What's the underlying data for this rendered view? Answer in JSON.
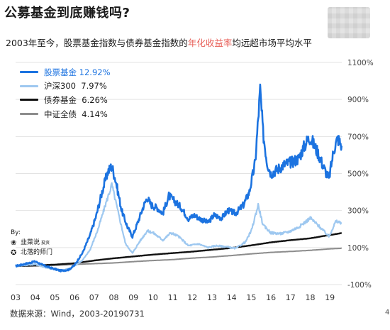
{
  "header": {
    "title": "公募基金到底赚钱吗?",
    "subtitle_pre": "2003年至今，股票基金指数与债券基金指数的",
    "subtitle_highlight": "年化收益率",
    "subtitle_post": "均远超市场平均水平"
  },
  "byline": {
    "label": "By:",
    "author1": "韭菜说",
    "author1_small": "投资",
    "author2": "北落的师门"
  },
  "source": "数据来源：Wind，2003-20190731",
  "page_number": "4",
  "colors": {
    "stock_fund": "#1c73e0",
    "hs300": "#9ec8f0",
    "bond_fund": "#111111",
    "zhongzheng_bond": "#8c8c8c",
    "highlight": "#e8615a"
  },
  "chart_data": {
    "type": "line",
    "x_ticks": [
      "03",
      "04",
      "05",
      "06",
      "07",
      "08",
      "09",
      "10",
      "11",
      "12",
      "13",
      "14",
      "15",
      "16",
      "17",
      "18",
      "19"
    ],
    "y_ticks": [
      "1100%",
      "900%",
      "700%",
      "500%",
      "300%",
      "100%",
      "-100%"
    ],
    "ylim": [
      -100,
      1100
    ],
    "legend_position": "top-left",
    "series": [
      {
        "name": "股票基金 12.92%",
        "color": "#1c73e0",
        "points": [
          [
            2003.0,
            0
          ],
          [
            2003.5,
            12
          ],
          [
            2004.0,
            25
          ],
          [
            2004.4,
            5
          ],
          [
            2004.8,
            -10
          ],
          [
            2005.3,
            -25
          ],
          [
            2005.7,
            -20
          ],
          [
            2006.0,
            5
          ],
          [
            2006.4,
            70
          ],
          [
            2006.8,
            170
          ],
          [
            2007.1,
            270
          ],
          [
            2007.4,
            400
          ],
          [
            2007.7,
            510
          ],
          [
            2007.9,
            540
          ],
          [
            2008.1,
            460
          ],
          [
            2008.4,
            300
          ],
          [
            2008.7,
            210
          ],
          [
            2008.95,
            160
          ],
          [
            2009.2,
            230
          ],
          [
            2009.5,
            320
          ],
          [
            2009.7,
            370
          ],
          [
            2009.9,
            330
          ],
          [
            2010.2,
            315
          ],
          [
            2010.5,
            285
          ],
          [
            2010.8,
            380
          ],
          [
            2011.0,
            360
          ],
          [
            2011.4,
            320
          ],
          [
            2011.8,
            255
          ],
          [
            2012.1,
            275
          ],
          [
            2012.4,
            255
          ],
          [
            2012.8,
            235
          ],
          [
            2013.1,
            275
          ],
          [
            2013.5,
            260
          ],
          [
            2013.8,
            300
          ],
          [
            2014.2,
            285
          ],
          [
            2014.6,
            330
          ],
          [
            2014.9,
            400
          ],
          [
            2015.2,
            560
          ],
          [
            2015.45,
            950
          ],
          [
            2015.6,
            720
          ],
          [
            2015.8,
            560
          ],
          [
            2016.0,
            500
          ],
          [
            2016.3,
            520
          ],
          [
            2016.7,
            550
          ],
          [
            2017.0,
            560
          ],
          [
            2017.4,
            580
          ],
          [
            2017.8,
            670
          ],
          [
            2018.0,
            695
          ],
          [
            2018.4,
            610
          ],
          [
            2018.7,
            530
          ],
          [
            2018.95,
            470
          ],
          [
            2019.2,
            630
          ],
          [
            2019.4,
            690
          ],
          [
            2019.6,
            650
          ]
        ]
      },
      {
        "name": "沪深300  7.97%",
        "color": "#9ec8f0",
        "points": [
          [
            2003.0,
            0
          ],
          [
            2004.0,
            10
          ],
          [
            2004.6,
            -10
          ],
          [
            2005.3,
            -25
          ],
          [
            2005.8,
            -12
          ],
          [
            2006.4,
            30
          ],
          [
            2006.8,
            90
          ],
          [
            2007.2,
            200
          ],
          [
            2007.6,
            340
          ],
          [
            2007.9,
            440
          ],
          [
            2008.2,
            300
          ],
          [
            2008.6,
            120
          ],
          [
            2008.95,
            70
          ],
          [
            2009.3,
            130
          ],
          [
            2009.7,
            190
          ],
          [
            2010.0,
            180
          ],
          [
            2010.5,
            140
          ],
          [
            2010.9,
            180
          ],
          [
            2011.3,
            160
          ],
          [
            2011.8,
            110
          ],
          [
            2012.3,
            120
          ],
          [
            2012.8,
            100
          ],
          [
            2013.2,
            110
          ],
          [
            2013.7,
            105
          ],
          [
            2014.2,
            95
          ],
          [
            2014.7,
            130
          ],
          [
            2015.0,
            190
          ],
          [
            2015.35,
            330
          ],
          [
            2015.6,
            220
          ],
          [
            2016.0,
            180
          ],
          [
            2016.5,
            175
          ],
          [
            2016.9,
            185
          ],
          [
            2017.4,
            210
          ],
          [
            2017.9,
            250
          ],
          [
            2018.0,
            260
          ],
          [
            2018.5,
            210
          ],
          [
            2018.95,
            160
          ],
          [
            2019.3,
            240
          ],
          [
            2019.6,
            235
          ]
        ]
      },
      {
        "name": "债券基金  6.26%",
        "color": "#111111",
        "points": [
          [
            2003.0,
            0
          ],
          [
            2004.0,
            3
          ],
          [
            2005.0,
            8
          ],
          [
            2006.0,
            15
          ],
          [
            2007.0,
            30
          ],
          [
            2008.0,
            42
          ],
          [
            2009.0,
            52
          ],
          [
            2010.0,
            62
          ],
          [
            2011.0,
            70
          ],
          [
            2012.0,
            78
          ],
          [
            2013.0,
            88
          ],
          [
            2014.0,
            98
          ],
          [
            2015.0,
            112
          ],
          [
            2016.0,
            128
          ],
          [
            2017.0,
            140
          ],
          [
            2018.0,
            150
          ],
          [
            2019.0,
            168
          ],
          [
            2019.6,
            178
          ]
        ]
      },
      {
        "name": "中证全债  4.14%",
        "color": "#8c8c8c",
        "points": [
          [
            2003.0,
            0
          ],
          [
            2004.0,
            1
          ],
          [
            2005.0,
            4
          ],
          [
            2006.0,
            9
          ],
          [
            2007.0,
            13
          ],
          [
            2008.0,
            17
          ],
          [
            2009.0,
            24
          ],
          [
            2010.0,
            30
          ],
          [
            2011.0,
            35
          ],
          [
            2012.0,
            43
          ],
          [
            2013.0,
            49
          ],
          [
            2014.0,
            57
          ],
          [
            2015.0,
            66
          ],
          [
            2016.0,
            74
          ],
          [
            2017.0,
            79
          ],
          [
            2018.0,
            85
          ],
          [
            2019.0,
            93
          ],
          [
            2019.6,
            96
          ]
        ]
      }
    ]
  }
}
